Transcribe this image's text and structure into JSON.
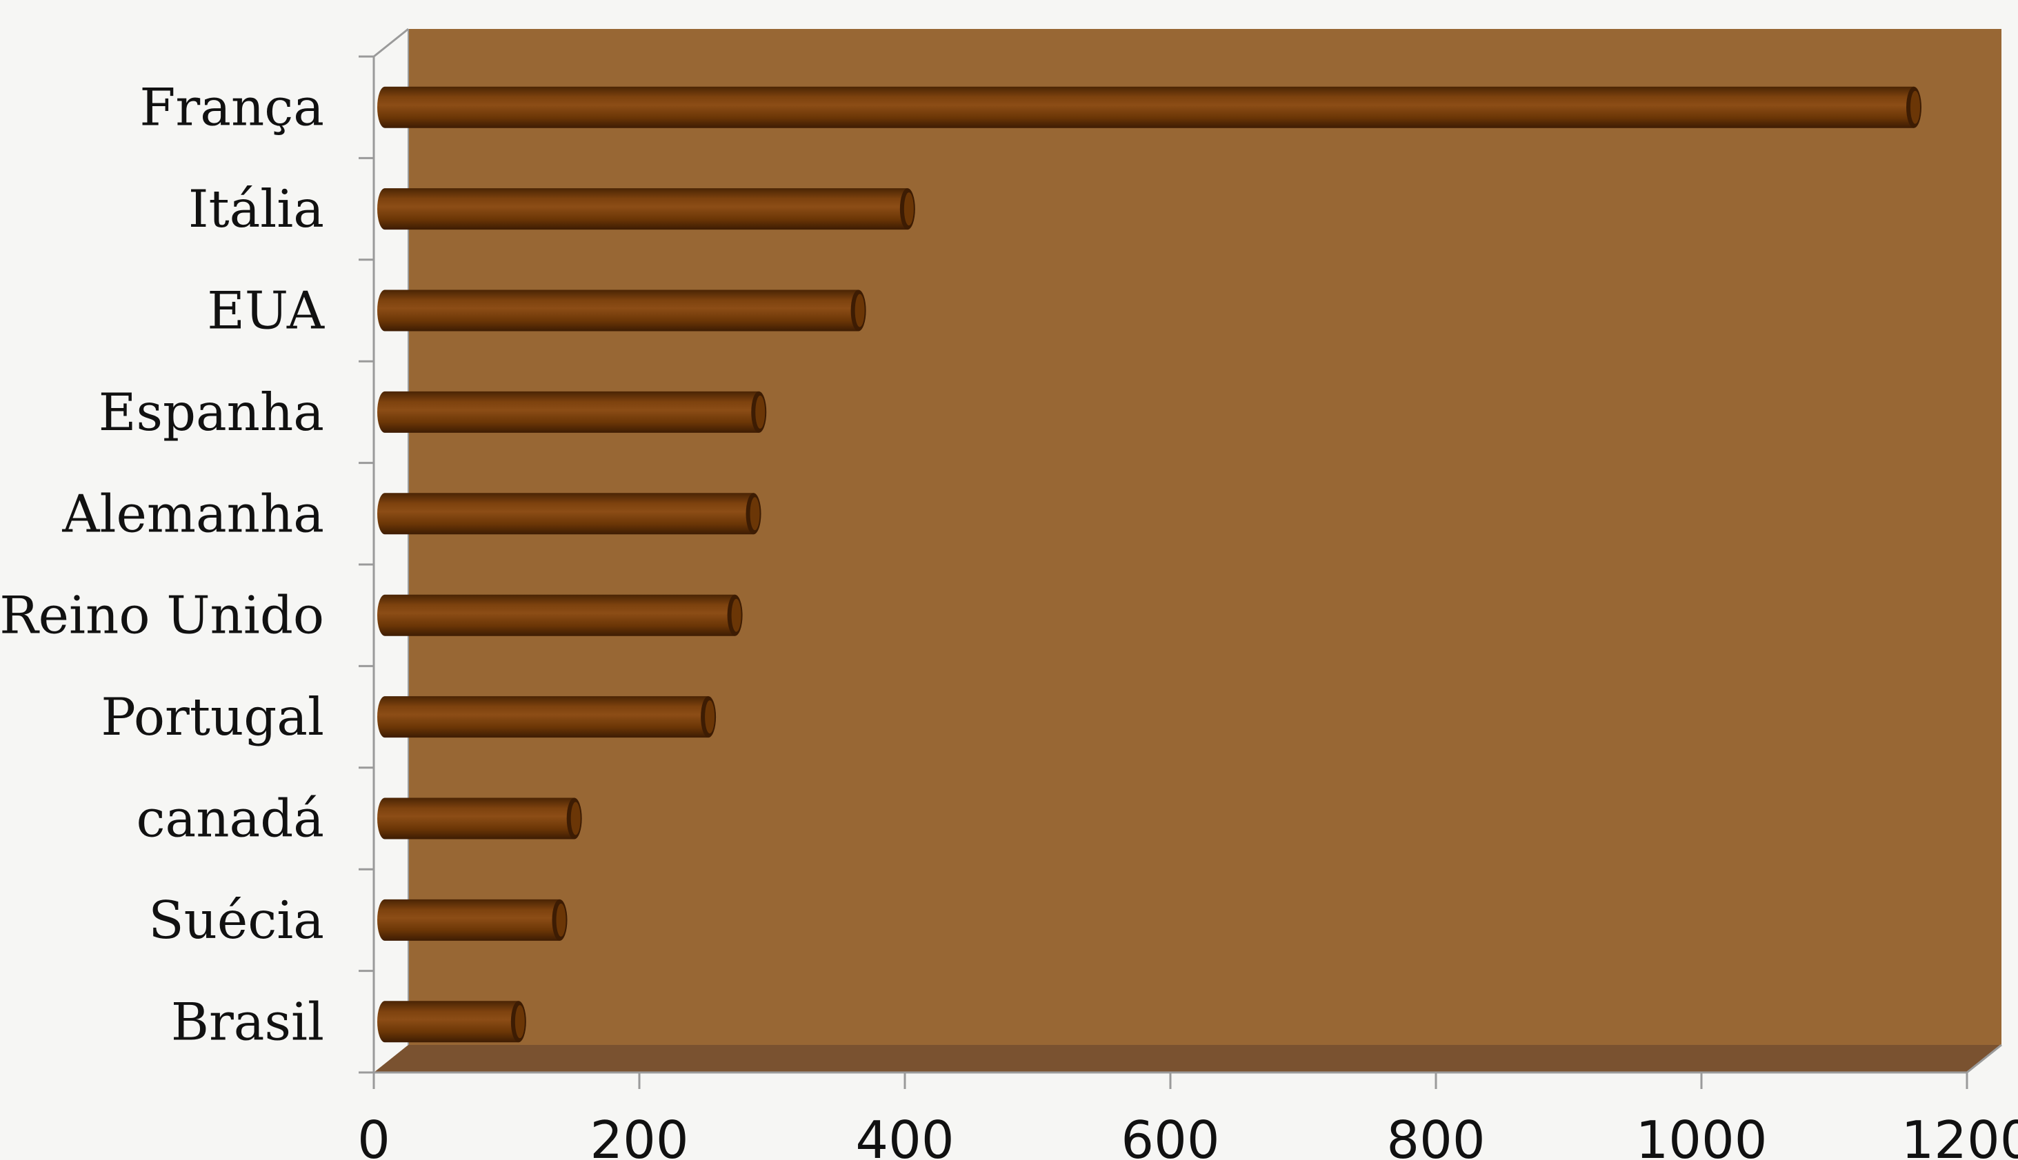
{
  "chart_data": {
    "type": "bar",
    "orientation": "horizontal",
    "categories": [
      "França",
      "Itália",
      "EUA",
      "Espanha",
      "Alemanha",
      "Reino Unido",
      "Portugal",
      "canadá",
      "Suécia",
      "Brasil"
    ],
    "values": [
      1160,
      402,
      365,
      290,
      286,
      272,
      252,
      151,
      140,
      109
    ],
    "xlim": [
      0,
      1200
    ],
    "xticks": [
      "0",
      "200",
      "400",
      "600",
      "800",
      "1000",
      "1200"
    ],
    "xlabel": "",
    "ylabel": "",
    "grid": false,
    "legend": "none",
    "style": "3d-cylinder"
  },
  "colors": {
    "plot_wall": "#986734",
    "plot_floor": "#7a5230",
    "bar": "#6b3606",
    "bar_highlight": "#8a4a14",
    "bar_shadow": "#3d1c03",
    "axis_line": "#9a9a9a",
    "page_background": "#f6f6f4"
  }
}
